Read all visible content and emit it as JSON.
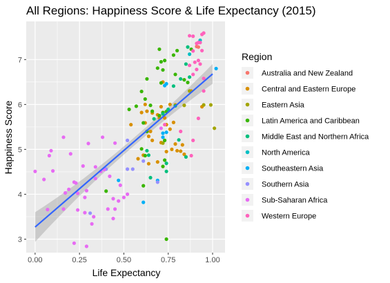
{
  "chart_data": {
    "type": "scatter",
    "title": "All Regions: Happiness Score & Life Expectancy (2015)",
    "xlabel": "Life Expectancy",
    "ylabel": "Happiness Score",
    "xlim": [
      -0.05,
      1.07
    ],
    "ylim": [
      2.7,
      7.85
    ],
    "x_ticks": [
      0.0,
      0.25,
      0.5,
      0.75,
      1.0
    ],
    "x_tick_labels": [
      "0.00",
      "0.25",
      "0.50",
      "0.75",
      "1.00"
    ],
    "y_ticks": [
      3,
      4,
      5,
      6,
      7
    ],
    "y_tick_labels": [
      "3",
      "4",
      "5",
      "6",
      "7"
    ],
    "grid": true,
    "legend_title": "Region",
    "legend_position": "right",
    "regression": {
      "method": "linear",
      "line_color": "#3366FF",
      "ci_band_color": "#999999",
      "start": [
        0.0,
        3.27
      ],
      "end": [
        1.0,
        6.68
      ],
      "ci_halfwidth_start": 0.33,
      "ci_halfwidth_mid": 0.09,
      "ci_halfwidth_end": 0.22
    },
    "series": [
      {
        "name": "Australia and New Zealand",
        "color": "#F8766D",
        "points": [
          [
            0.91,
            7.29
          ],
          [
            0.92,
            7.28
          ]
        ]
      },
      {
        "name": "Central and Eastern Europe",
        "color": "#D89000",
        "points": [
          [
            0.88,
            6.3
          ],
          [
            0.72,
            6.5
          ],
          [
            0.76,
            6.0
          ],
          [
            0.79,
            5.99
          ],
          [
            0.71,
            5.95
          ],
          [
            0.63,
            5.85
          ],
          [
            0.66,
            5.81
          ],
          [
            0.69,
            5.77
          ],
          [
            0.73,
            5.7
          ],
          [
            0.78,
            5.6
          ],
          [
            0.62,
            5.59
          ],
          [
            0.74,
            5.55
          ],
          [
            0.54,
            5.55
          ],
          [
            0.76,
            5.45
          ],
          [
            0.65,
            5.4
          ],
          [
            0.64,
            5.29
          ],
          [
            0.66,
            5.2
          ],
          [
            0.71,
            5.15
          ],
          [
            0.79,
            5.12
          ],
          [
            0.83,
            5.1
          ],
          [
            0.77,
            5.0
          ],
          [
            0.74,
            4.95
          ],
          [
            0.8,
            4.97
          ],
          [
            0.82,
            4.96
          ],
          [
            0.69,
            4.72
          ],
          [
            0.64,
            4.68
          ],
          [
            0.84,
            4.89
          ],
          [
            0.94,
            5.95
          ],
          [
            0.62,
            6.0
          ],
          [
            0.61,
            4.87
          ],
          [
            0.58,
            4.79
          ],
          [
            0.6,
            5.82
          ],
          [
            0.7,
            5.7
          ]
        ]
      },
      {
        "name": "Eastern Asia",
        "color": "#A3A500",
        "points": [
          [
            0.99,
            5.99
          ],
          [
            1.01,
            5.47
          ],
          [
            0.95,
            5.99
          ],
          [
            0.87,
            6.3
          ],
          [
            0.72,
            5.14
          ],
          [
            0.84,
            5.98
          ]
        ]
      },
      {
        "name": "Latin America and Caribbean",
        "color": "#39B600",
        "points": [
          [
            0.7,
            7.23
          ],
          [
            0.73,
            6.98
          ],
          [
            0.69,
            6.81
          ],
          [
            0.79,
            6.67
          ],
          [
            0.86,
            6.49
          ],
          [
            0.8,
            7.2
          ],
          [
            0.63,
            6.57
          ],
          [
            0.71,
            6.95
          ],
          [
            0.72,
            6.77
          ],
          [
            0.71,
            6.48
          ],
          [
            0.6,
            6.29
          ],
          [
            0.62,
            6.12
          ],
          [
            0.53,
            5.89
          ],
          [
            0.74,
            5.84
          ],
          [
            0.57,
            5.96
          ],
          [
            0.65,
            5.98
          ],
          [
            0.72,
            5.82
          ],
          [
            0.7,
            5.75
          ],
          [
            0.66,
            5.85
          ],
          [
            0.61,
            5.59
          ],
          [
            0.63,
            5.4
          ],
          [
            0.73,
            5.2
          ],
          [
            0.6,
            5.01
          ],
          [
            0.62,
            4.86
          ],
          [
            0.73,
            4.76
          ],
          [
            0.72,
            4.62
          ],
          [
            0.61,
            4.19
          ],
          [
            0.84,
            6.55
          ],
          [
            0.88,
            7.23
          ],
          [
            0.78,
            7.1
          ],
          [
            0.74,
            3.0
          ],
          [
            0.4,
            4.07
          ]
        ]
      },
      {
        "name": "Middle East and Northern Africa",
        "color": "#00BF7D",
        "points": [
          [
            0.86,
            7.28
          ],
          [
            0.85,
            6.9
          ],
          [
            0.87,
            6.61
          ],
          [
            0.82,
            6.57
          ],
          [
            0.78,
            6.41
          ],
          [
            0.79,
            5.97
          ],
          [
            0.75,
            5.89
          ],
          [
            0.72,
            5.79
          ],
          [
            0.67,
            5.68
          ],
          [
            0.81,
            5.21
          ],
          [
            0.85,
            4.83
          ],
          [
            0.74,
            4.69
          ],
          [
            0.74,
            4.51
          ],
          [
            0.63,
            4.97
          ],
          [
            0.65,
            4.37
          ],
          [
            0.64,
            4.87
          ]
        ]
      },
      {
        "name": "North America",
        "color": "#00BFC4",
        "points": [
          [
            0.93,
            7.43
          ],
          [
            0.87,
            7.12
          ]
        ]
      },
      {
        "name": "Southeastern Asia",
        "color": "#00B0F6",
        "points": [
          [
            1.02,
            6.8
          ],
          [
            0.74,
            6.46
          ],
          [
            0.73,
            6.42
          ],
          [
            0.72,
            5.36
          ],
          [
            0.74,
            5.38
          ],
          [
            0.61,
            3.82
          ],
          [
            0.47,
            4.31
          ],
          [
            0.69,
            4.31
          ],
          [
            0.72,
            5.27
          ]
        ]
      },
      {
        "name": "Southern Asia",
        "color": "#9590FF",
        "points": [
          [
            0.52,
            5.2
          ],
          [
            0.61,
            4.74
          ],
          [
            0.55,
            4.56
          ],
          [
            0.52,
            4.56
          ],
          [
            0.69,
            4.27
          ],
          [
            0.31,
            3.58
          ],
          [
            0.4,
            4.56
          ]
        ]
      },
      {
        "name": "Sub-Saharan Africa",
        "color": "#E76BF3",
        "points": [
          [
            0.0,
            4.51
          ],
          [
            0.05,
            4.33
          ],
          [
            0.08,
            4.86
          ],
          [
            0.09,
            4.97
          ],
          [
            0.1,
            4.52
          ],
          [
            0.07,
            3.66
          ],
          [
            0.16,
            5.27
          ],
          [
            0.2,
            4.9
          ],
          [
            0.16,
            3.67
          ],
          [
            0.17,
            4.03
          ],
          [
            0.19,
            4.11
          ],
          [
            0.22,
            4.27
          ],
          [
            0.23,
            4.25
          ],
          [
            0.24,
            4.02
          ],
          [
            0.27,
            4.63
          ],
          [
            0.29,
            4.08
          ],
          [
            0.3,
            5.13
          ],
          [
            0.32,
            3.34
          ],
          [
            0.34,
            4.61
          ],
          [
            0.34,
            4.35
          ],
          [
            0.37,
            4.51
          ],
          [
            0.39,
            4.55
          ],
          [
            0.41,
            3.67
          ],
          [
            0.42,
            4.4
          ],
          [
            0.44,
            3.9
          ],
          [
            0.45,
            3.67
          ],
          [
            0.44,
            3.46
          ],
          [
            0.47,
            3.85
          ],
          [
            0.5,
            3.93
          ],
          [
            0.29,
            2.84
          ],
          [
            0.22,
            2.91
          ],
          [
            0.24,
            3.65
          ],
          [
            0.28,
            3.59
          ],
          [
            0.33,
            3.5
          ],
          [
            0.38,
            5.27
          ],
          [
            0.45,
            5.14
          ],
          [
            0.48,
            4.2
          ],
          [
            0.52,
            4.0
          ],
          [
            0.71,
            5.47
          ],
          [
            0.28,
            3.93
          ]
        ]
      },
      {
        "name": "Western Europe",
        "color": "#FF62BC",
        "points": [
          [
            0.87,
            7.53
          ],
          [
            0.89,
            7.52
          ],
          [
            0.95,
            7.59
          ],
          [
            0.94,
            7.56
          ],
          [
            0.93,
            7.38
          ],
          [
            0.92,
            7.38
          ],
          [
            0.91,
            7.36
          ],
          [
            0.94,
            7.2
          ],
          [
            0.89,
            7.19
          ],
          [
            0.9,
            6.94
          ],
          [
            0.92,
            6.98
          ],
          [
            0.93,
            6.9
          ],
          [
            0.87,
            6.87
          ],
          [
            0.91,
            6.78
          ],
          [
            0.89,
            6.67
          ],
          [
            0.95,
            6.58
          ],
          [
            0.95,
            6.3
          ],
          [
            0.92,
            5.69
          ],
          [
            0.89,
            5.2
          ],
          [
            0.88,
            4.86
          ],
          [
            0.73,
            5.55
          ],
          [
            0.82,
            5.4
          ]
        ]
      }
    ]
  }
}
